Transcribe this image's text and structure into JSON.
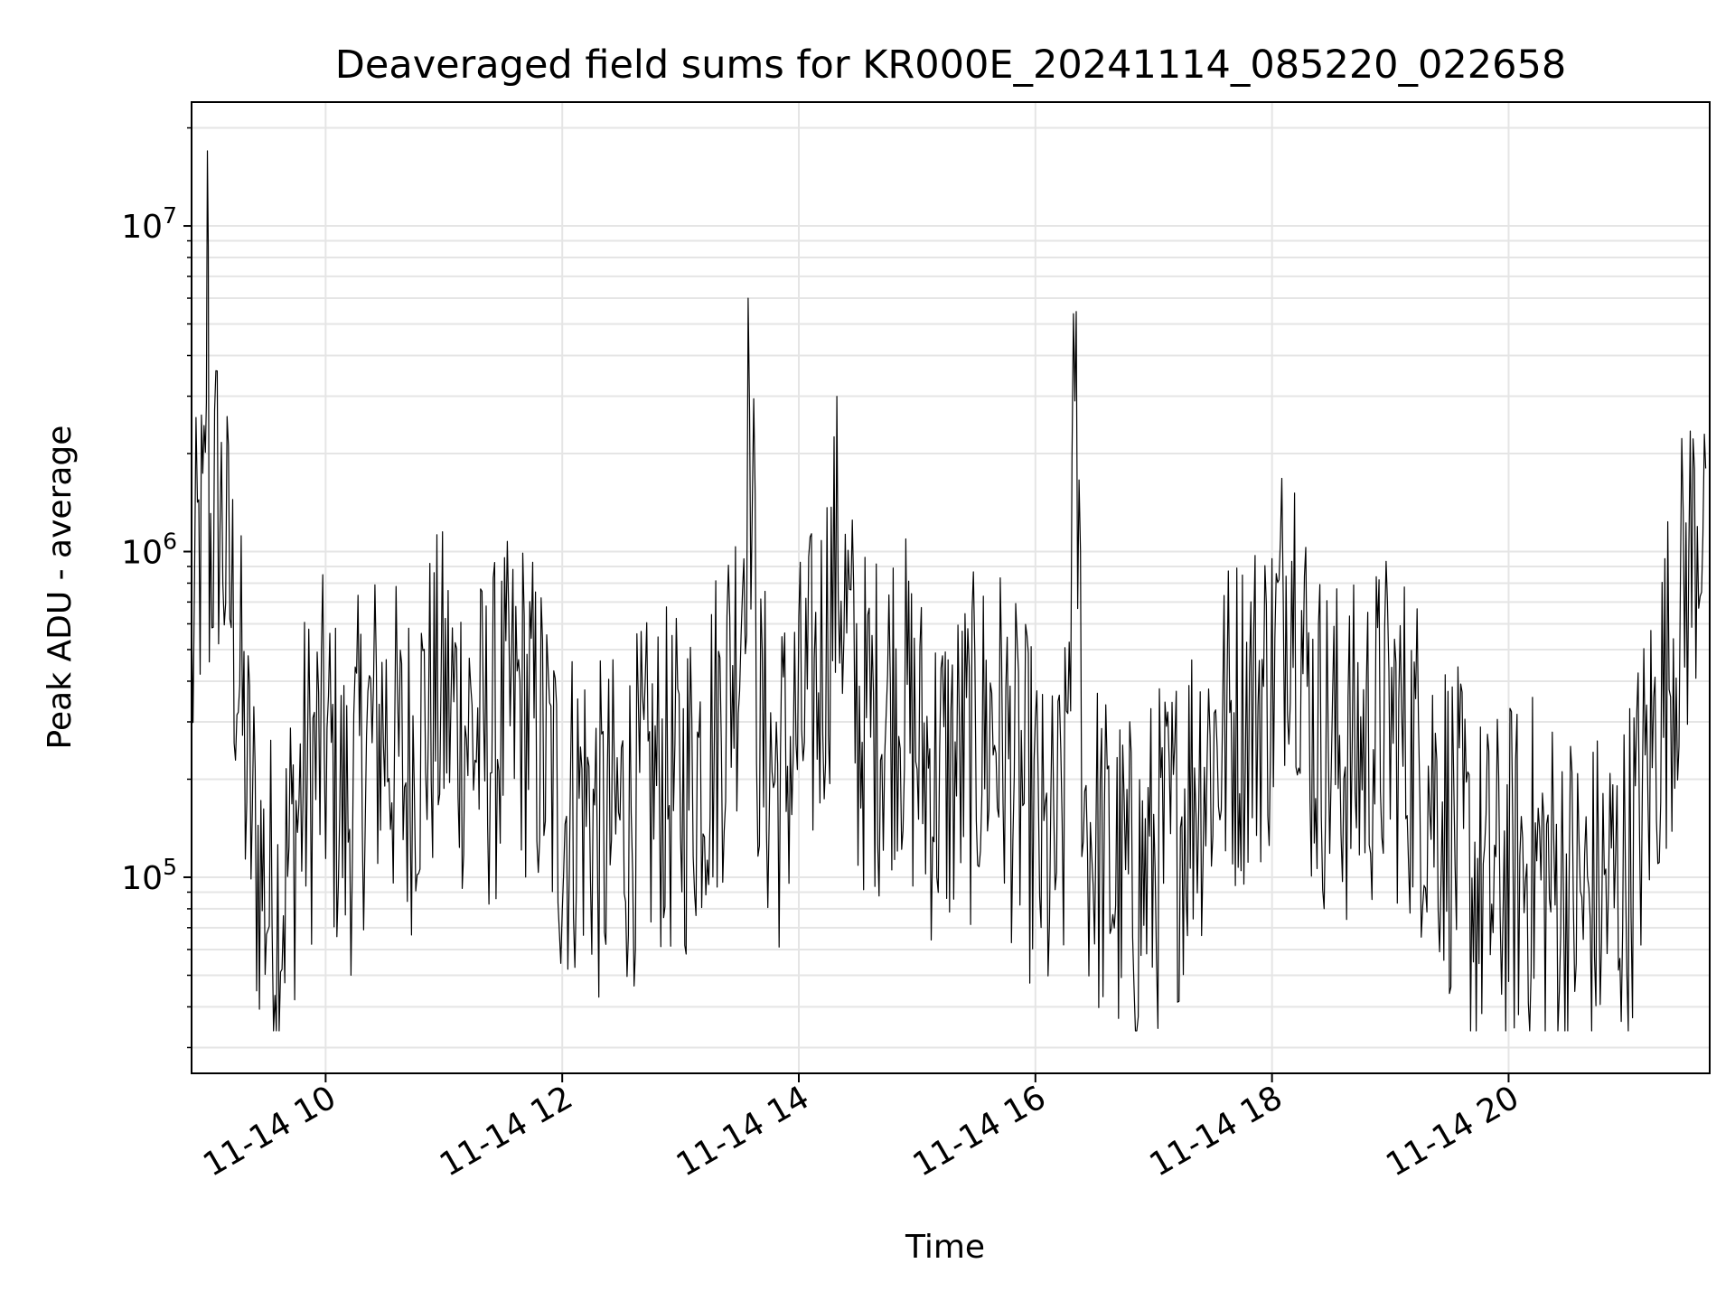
{
  "chart_data": {
    "type": "line",
    "title": "Deaveraged field sums for KR000E_20241114_085220_022658",
    "xlabel": "Time",
    "ylabel": "Peak ADU - average",
    "yscale": "log",
    "xlim": [
      "11-14 08:52",
      "11-14 21:42"
    ],
    "ylim": [
      25000,
      24000000
    ],
    "x_tick_labels": [
      "11-14 10",
      "11-14 12",
      "11-14 14",
      "11-14 16",
      "11-14 18",
      "11-14 20"
    ],
    "y_tick_labels": [
      {
        "base": "10",
        "exp": "5"
      },
      {
        "base": "10",
        "exp": "6"
      },
      {
        "base": "10",
        "exp": "7"
      }
    ],
    "grid": true,
    "legend": "none",
    "line_color": "#000000",
    "grid_color": "#e5e5e5",
    "series": [
      {
        "x": [
          "11-14 08:52",
          "11-14 08:55",
          "11-14 08:59",
          "11-14 09:00",
          "11-14 09:01",
          "11-14 09:05",
          "11-14 09:10",
          "11-14 09:15",
          "11-14 09:20",
          "11-14 09:25",
          "11-14 09:30",
          "11-14 09:35",
          "11-14 09:40",
          "11-14 09:45",
          "11-14 09:50",
          "11-14 10:00",
          "11-14 10:10",
          "11-14 10:20",
          "11-14 10:30",
          "11-14 10:40",
          "11-14 10:50",
          "11-14 11:00",
          "11-14 11:10",
          "11-14 11:20",
          "11-14 11:30",
          "11-14 11:40",
          "11-14 11:50",
          "11-14 12:00",
          "11-14 12:10",
          "11-14 12:20",
          "11-14 12:30",
          "11-14 12:40",
          "11-14 12:50",
          "11-14 13:00",
          "11-14 13:10",
          "11-14 13:20",
          "11-14 13:30",
          "11-14 13:35",
          "11-14 13:40",
          "11-14 13:50",
          "11-14 14:00",
          "11-14 14:10",
          "11-14 14:20",
          "11-14 14:30",
          "11-14 14:40",
          "11-14 14:50",
          "11-14 15:00",
          "11-14 15:10",
          "11-14 15:20",
          "11-14 15:30",
          "11-14 15:40",
          "11-14 15:50",
          "11-14 16:00",
          "11-14 16:05",
          "11-14 16:10",
          "11-14 16:15",
          "11-14 16:20",
          "11-14 16:25",
          "11-14 16:30",
          "11-14 16:40",
          "11-14 16:50",
          "11-14 17:00",
          "11-14 17:10",
          "11-14 17:20",
          "11-14 17:30",
          "11-14 17:40",
          "11-14 17:50",
          "11-14 18:00",
          "11-14 18:10",
          "11-14 18:20",
          "11-14 18:30",
          "11-14 18:40",
          "11-14 18:50",
          "11-14 19:00",
          "11-14 19:10",
          "11-14 19:20",
          "11-14 19:30",
          "11-14 19:40",
          "11-14 19:50",
          "11-14 20:00",
          "11-14 20:10",
          "11-14 20:20",
          "11-14 20:30",
          "11-14 20:40",
          "11-14 20:50",
          "11-14 21:00",
          "11-14 21:10",
          "11-14 21:20",
          "11-14 21:30",
          "11-14 21:40"
        ],
        "y": [
          400000,
          900000,
          1100000,
          17000000,
          1000000,
          1500000,
          900000,
          500000,
          200000,
          120000,
          90000,
          80000,
          100000,
          150000,
          200000,
          250000,
          150000,
          250000,
          300000,
          200000,
          300000,
          350000,
          300000,
          250000,
          300000,
          350000,
          250000,
          150000,
          180000,
          130000,
          150000,
          170000,
          200000,
          180000,
          230000,
          300000,
          600000,
          2700000,
          250000,
          200000,
          280000,
          400000,
          1000000,
          300000,
          300000,
          400000,
          250000,
          200000,
          220000,
          250000,
          300000,
          200000,
          150000,
          100000,
          120000,
          150000,
          2900000,
          150000,
          130000,
          100000,
          90000,
          110000,
          130000,
          200000,
          250000,
          300000,
          350000,
          400000,
          1000000,
          300000,
          250000,
          230000,
          270000,
          300000,
          250000,
          200000,
          150000,
          100000,
          90000,
          100000,
          110000,
          100000,
          90000,
          80000,
          90000,
          100000,
          200000,
          400000,
          800000,
          1800000
        ]
      }
    ]
  }
}
